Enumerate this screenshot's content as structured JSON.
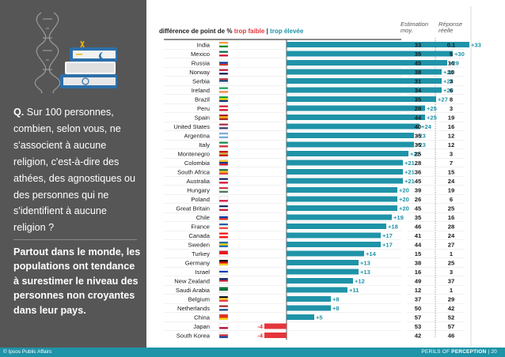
{
  "question": {
    "prefix": "Q.",
    "text": "Sur 100 personnes, combien, selon vous, ne s'associent à aucune religion, c'est-à-dire des athées, des agnostiques ou des personnes qui ne s'identifient à aucune religion ?"
  },
  "summary": "Partout dans le monde, les populations ont tendance à surestimer le niveau des personnes non croyantes dans leur pays.",
  "footer": {
    "left": "© Ipsos Public Affairs",
    "right_prefix": "PERILS OF",
    "right_bold": "PERCEPTION",
    "separator": "|",
    "page": "20"
  },
  "colors": {
    "teal": "#1f93a8",
    "red": "#e5353b",
    "panel": "#565656"
  },
  "chart_data": {
    "type": "bar",
    "header": {
      "title_prefix": "différence de point de %",
      "low_label": "trop faible",
      "separator": "|",
      "high_label": "trop élevée",
      "col_estimate": [
        "Estimation",
        "moy."
      ],
      "col_actual": [
        "Réponse",
        "réelle"
      ]
    },
    "categories": [
      "India",
      "Mexico",
      "Russia",
      "Norway",
      "Serbia",
      "Ireland",
      "Brazil",
      "Peru",
      "Spain",
      "United States",
      "Argentina",
      "Italy",
      "Montenegro",
      "Colombia",
      "South Africa",
      "Australia",
      "Hungary",
      "Poland",
      "Great Britain",
      "Chile",
      "France",
      "Canada",
      "Sweden",
      "Turkey",
      "Germany",
      "Israel",
      "New Zealand",
      "Saudi Arabia",
      "Belgium",
      "Netherlands",
      "China",
      "Japan",
      "South Korea"
    ],
    "labels": [
      "+33",
      "+30",
      "+29",
      "+28",
      "+28",
      "+28",
      "+27",
      "+25",
      "+25",
      "+24",
      "+23",
      "+23",
      "+22",
      "+21",
      "+21",
      "+21",
      "+20",
      "+20",
      "+20",
      "+19",
      "+18",
      "+17",
      "+17",
      "+14",
      "+13",
      "+13",
      "+12",
      "+11",
      "+8",
      "+8",
      "+5",
      "-4",
      "-4"
    ],
    "values": [
      33,
      30,
      29,
      28,
      28,
      28,
      27,
      25,
      25,
      24,
      23,
      23,
      22,
      21,
      21,
      21,
      20,
      20,
      20,
      19,
      18,
      17,
      17,
      14,
      13,
      13,
      12,
      11,
      8,
      8,
      5,
      -4,
      -4
    ],
    "estimate": [
      "33",
      "35",
      "45",
      "38",
      "31",
      "34",
      "35",
      "28",
      "44",
      "40",
      "35",
      "35",
      "25",
      "28",
      "36",
      "45",
      "39",
      "26",
      "45",
      "35",
      "46",
      "41",
      "44",
      "15",
      "38",
      "16",
      "49",
      "12",
      "37",
      "50",
      "57",
      "53",
      "42"
    ],
    "actual": [
      "0.1",
      "5",
      "16",
      "10",
      "3",
      "6",
      "8",
      "3",
      "19",
      "16",
      "12",
      "12",
      "3",
      "7",
      "15",
      "24",
      "19",
      "6",
      "25",
      "16",
      "28",
      "24",
      "27",
      "1",
      "25",
      "3",
      "37",
      "1",
      "29",
      "42",
      "52",
      "57",
      "46"
    ],
    "flags": [
      "india-flag",
      "mexico-flag",
      "russia-flag",
      "norway-flag",
      "serbia-flag",
      "ireland-flag",
      "brazil-flag",
      "peru-flag",
      "spain-flag",
      "united-states-flag",
      "argentina-flag",
      "italy-flag",
      "montenegro-flag",
      "colombia-flag",
      "south-africa-flag",
      "australia-flag",
      "hungary-flag",
      "poland-flag",
      "great-britain-flag",
      "chile-flag",
      "france-flag",
      "canada-flag",
      "sweden-flag",
      "turkey-flag",
      "germany-flag",
      "israel-flag",
      "new-zealand-flag",
      "saudi-arabia-flag",
      "belgium-flag",
      "netherlands-flag",
      "china-flag",
      "japan-flag",
      "south-korea-flag"
    ],
    "flag_colors": [
      [
        "#FF9933",
        "#FFFFFF",
        "#138808"
      ],
      [
        "#006847",
        "#FFFFFF",
        "#CE1126"
      ],
      [
        "#FFFFFF",
        "#0039A6",
        "#D52B1E"
      ],
      [
        "#BA0C2F",
        "#FFFFFF",
        "#00205B"
      ],
      [
        "#C6363C",
        "#0C4076",
        "#FFFFFF"
      ],
      [
        "#169B62",
        "#FFFFFF",
        "#FF883E"
      ],
      [
        "#009C3B",
        "#FFDF00",
        "#002776"
      ],
      [
        "#D91023",
        "#FFFFFF",
        "#D91023"
      ],
      [
        "#AA151B",
        "#F1BF00",
        "#AA151B"
      ],
      [
        "#B22234",
        "#FFFFFF",
        "#3C3B6E"
      ],
      [
        "#74ACDF",
        "#FFFFFF",
        "#74ACDF"
      ],
      [
        "#009246",
        "#FFFFFF",
        "#CE2B37"
      ],
      [
        "#C40308",
        "#D4AF37",
        "#C40308"
      ],
      [
        "#FCD116",
        "#003893",
        "#CE1126"
      ],
      [
        "#007A4D",
        "#FFB612",
        "#DE3831"
      ],
      [
        "#012169",
        "#FFFFFF",
        "#E4002B"
      ],
      [
        "#CE2939",
        "#FFFFFF",
        "#477050"
      ],
      [
        "#FFFFFF",
        "#FFFFFF",
        "#DC143C"
      ],
      [
        "#012169",
        "#FFFFFF",
        "#C8102E"
      ],
      [
        "#FFFFFF",
        "#0039A6",
        "#D52B1E"
      ],
      [
        "#0055A4",
        "#FFFFFF",
        "#EF4135"
      ],
      [
        "#FF0000",
        "#FFFFFF",
        "#FF0000"
      ],
      [
        "#006AA7",
        "#FECC00",
        "#006AA7"
      ],
      [
        "#E30A17",
        "#E30A17",
        "#FFFFFF"
      ],
      [
        "#000000",
        "#DD0000",
        "#FFCE00"
      ],
      [
        "#FFFFFF",
        "#0038B8",
        "#FFFFFF"
      ],
      [
        "#012169",
        "#C8102E",
        "#FFFFFF"
      ],
      [
        "#006C35",
        "#006C35",
        "#FFFFFF"
      ],
      [
        "#000000",
        "#FDDA24",
        "#EF3340"
      ],
      [
        "#AE1C28",
        "#FFFFFF",
        "#21468B"
      ],
      [
        "#DE2910",
        "#DE2910",
        "#FFDE00"
      ],
      [
        "#FFFFFF",
        "#FFFFFF",
        "#BC002D"
      ],
      [
        "#FFFFFF",
        "#CD2E3A",
        "#0047A0"
      ]
    ],
    "orientation": "horizontal",
    "xlim": [
      -6,
      36
    ]
  }
}
